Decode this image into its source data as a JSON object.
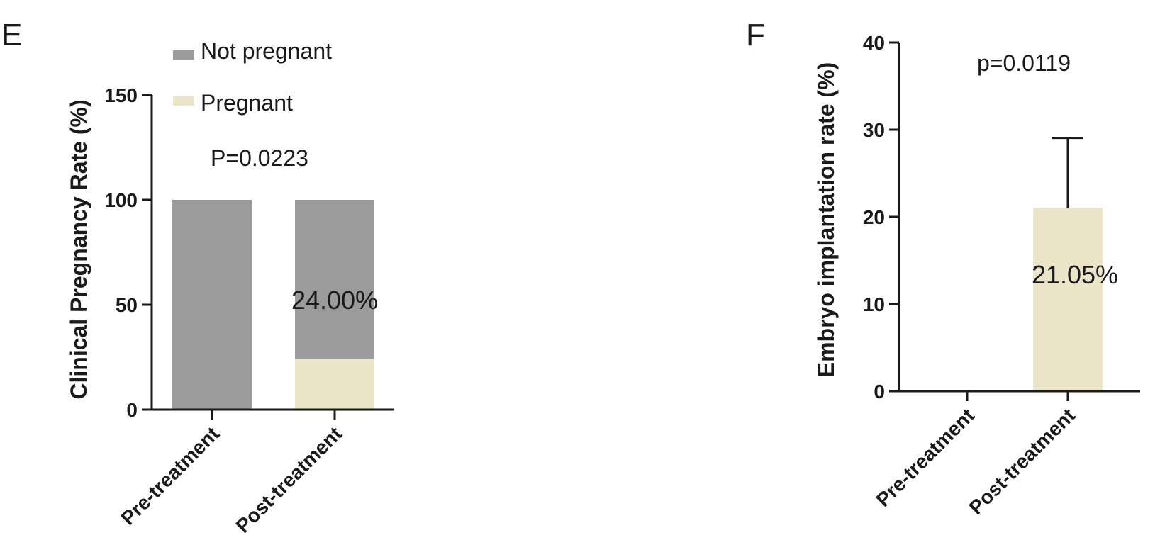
{
  "colors": {
    "not_pregnant": "#9b9b9b",
    "pregnant": "#ece4c8",
    "axis": "#1a1a1a"
  },
  "chart_data": [
    {
      "panel": "E",
      "type": "bar",
      "stacked": true,
      "categories": [
        "Pre-treatment",
        "Post-treatment"
      ],
      "series": [
        {
          "name": "Pregnant",
          "values": [
            0,
            24
          ],
          "color": "#ece4c8"
        },
        {
          "name": "Not pregnant",
          "values": [
            100,
            76
          ],
          "color": "#9b9b9b"
        }
      ],
      "ylabel": "Clinical Pregnancy Rate (%)",
      "ylim": [
        0,
        150
      ],
      "yticks": [
        0,
        50,
        100,
        150
      ],
      "legend": {
        "placement": "top",
        "entries": [
          "Not pregnant",
          "Pregnant"
        ]
      },
      "annotations": {
        "p_value": "P=0.0223",
        "value_label": "24.00%"
      }
    },
    {
      "panel": "F",
      "type": "bar",
      "categories": [
        "Pre-treatment",
        "Post-treatment"
      ],
      "series": [
        {
          "values": [
            0,
            21.05
          ],
          "error": [
            0,
            8
          ],
          "color": "#ece4c8"
        }
      ],
      "ylabel": "Embryo implantation rate (%)",
      "ylim": [
        0,
        40
      ],
      "yticks": [
        0,
        10,
        20,
        30,
        40
      ],
      "annotations": {
        "p_value": "p=0.0119",
        "value_label": "21.05%"
      }
    }
  ]
}
